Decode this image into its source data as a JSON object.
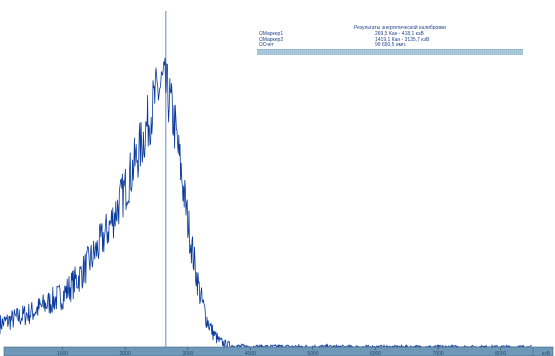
{
  "chart_data": {
    "type": "line",
    "title": "",
    "xlabel": "",
    "ylabel": "",
    "xlim": [
      0,
      8500
    ],
    "x_ticks": [
      "1000",
      "2000",
      "3000",
      "4000",
      "5000",
      "6000",
      "7000",
      "8000"
    ],
    "x_unit": "кэВ",
    "grid": false,
    "legend": "none",
    "marker_line_x": 2650,
    "series": [
      {
        "color": "#0a3a9c",
        "x": [
          0,
          250,
          500,
          750,
          1000,
          1250,
          1500,
          1750,
          2000,
          2250,
          2500,
          2600,
          2700,
          2800,
          2900,
          3000,
          3100,
          3200,
          3300,
          3400,
          3500,
          3600,
          3700,
          3800,
          4000,
          5000,
          6000,
          7000,
          8000,
          8500
        ],
        "y": [
          8,
          10,
          12,
          15,
          18,
          24,
          32,
          42,
          55,
          70,
          88,
          92,
          87,
          76,
          60,
          44,
          30,
          18,
          10,
          5,
          2,
          1,
          0.5,
          0.2,
          0.1,
          0.1,
          0,
          0,
          0,
          0
        ]
      }
    ]
  },
  "info_panel": {
    "title": "Результаты энергетической калибровки",
    "rows": [
      {
        "label": "ΩМаркер1",
        "value": "269,5 Кан -   418,1 кэВ"
      },
      {
        "label": "ΩМаркер2",
        "value": "1419,1 Кан -   3135,7 кэВ"
      },
      {
        "label": "ΩСчет",
        "value": "99 650,5 имп."
      }
    ]
  },
  "colors": {
    "spectrum": "#0a3a9c",
    "axis_bar": "#6f97b7",
    "axis_bar_border": "#3f6585",
    "marker_line": "#3b6fb6",
    "panel_text": "#21458f",
    "panel_bar": "#a8c8da"
  }
}
